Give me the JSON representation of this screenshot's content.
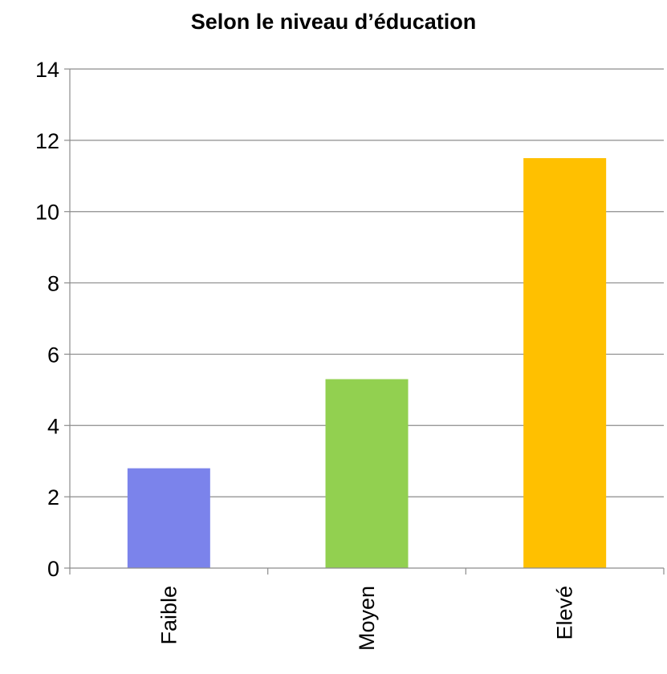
{
  "chart_data": {
    "type": "bar",
    "title": "Selon le niveau d’éducation",
    "categories": [
      "Faible",
      "Moyen",
      "Elevé"
    ],
    "values": [
      2.8,
      5.3,
      11.5
    ],
    "colors": [
      "#7b83eb",
      "#92d050",
      "#ffc000"
    ],
    "ylim": [
      0,
      14
    ],
    "yticks": [
      0,
      2,
      4,
      6,
      8,
      10,
      12,
      14
    ],
    "grid": true,
    "legend": "none",
    "xlabel": "",
    "ylabel": ""
  }
}
